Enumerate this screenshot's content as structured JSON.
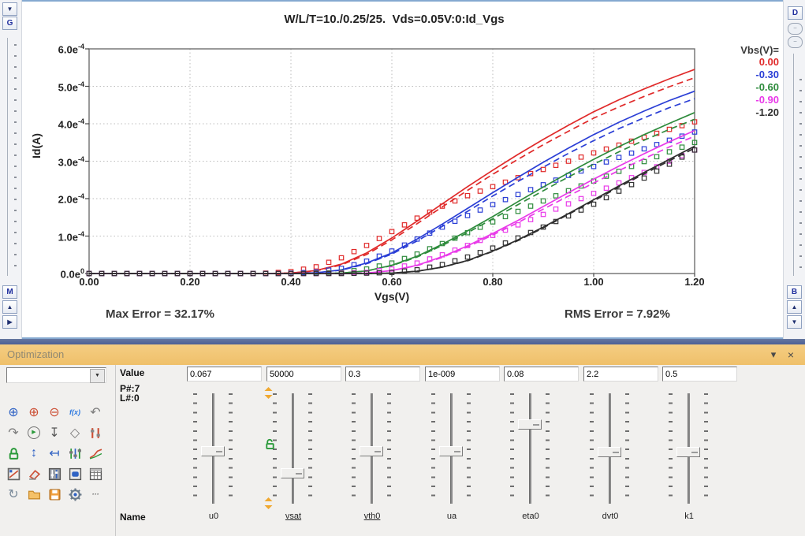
{
  "window": {
    "left_rail": {
      "collapse_glyph": "▼",
      "g_label": "G",
      "m_label": "M",
      "up_glyph": "▲",
      "right_glyph": "▶"
    },
    "right_rail": {
      "d_label": "D",
      "round1_glyph": "−",
      "round2_glyph": "−",
      "b_label": "B",
      "up_glyph": "▲",
      "down_glyph": "▼"
    }
  },
  "chart": {
    "title": "W/L/T=10./0.25/25.  Vds=0.05V:0:Id_Vgs",
    "xlabel": "Vgs(V)",
    "ylabel": "Id(A)",
    "max_error": "Max Error = 32.17%",
    "rms_error": "RMS Error = 7.92%",
    "x_tick_labels": [
      "0.00",
      "0.20",
      "0.40",
      "0.60",
      "0.80",
      "1.00",
      "1.20"
    ],
    "y_tick_labels": [
      [
        "6.0e",
        "-4"
      ],
      [
        "5.0e",
        "-4"
      ],
      [
        "4.0e",
        "-4"
      ],
      [
        "3.0e",
        "-4"
      ],
      [
        "2.0e",
        "-4"
      ],
      [
        "1.0e",
        "-4"
      ],
      [
        "0.0e",
        "0"
      ]
    ],
    "legend": {
      "title": "Vbs(V)=",
      "entries": [
        {
          "label": "0.00",
          "color": "#e02a2a"
        },
        {
          "label": "-0.30",
          "color": "#2b3fd6"
        },
        {
          "label": "-0.60",
          "color": "#2e8b3c"
        },
        {
          "label": "-0.90",
          "color": "#e93ae9"
        },
        {
          "label": "-1.20",
          "color": "#2f2f2f"
        }
      ]
    },
    "chart_data": {
      "type": "line",
      "title": "W/L/T=10./0.25/25.  Vds=0.05V:0:Id_Vgs",
      "xlabel": "Vgs(V)",
      "ylabel": "Id(A)",
      "xlim": [
        0,
        1.2
      ],
      "ylim": [
        0,
        0.0006
      ],
      "grid": "dotted",
      "legend_position": "top-right",
      "x_start": 0,
      "x_step": 0.05,
      "value_unit": "1e-4 A",
      "note": "solid/dashed = model curves, markers = measured squares",
      "series": [
        {
          "name": "Vbs=0.00",
          "color": "#e02a2a",
          "solid": [
            0,
            0,
            0,
            0,
            0,
            0,
            0,
            0,
            0.01,
            0.08,
            0.25,
            0.55,
            0.95,
            1.4,
            1.86,
            2.32,
            2.76,
            3.18,
            3.58,
            3.96,
            4.32,
            4.64,
            4.93,
            5.2,
            5.45
          ],
          "dashed": [
            0,
            0,
            0,
            0,
            0,
            0,
            0,
            0,
            0.01,
            0.07,
            0.23,
            0.51,
            0.9,
            1.33,
            1.78,
            2.22,
            2.65,
            3.05,
            3.44,
            3.8,
            4.15,
            4.45,
            4.73,
            4.99,
            5.23
          ],
          "markers": [
            0,
            0,
            0,
            0,
            0,
            0,
            0,
            0.01,
            0.05,
            0.18,
            0.42,
            0.75,
            1.12,
            1.48,
            1.8,
            2.08,
            2.32,
            2.56,
            2.78,
            3,
            3.22,
            3.43,
            3.64,
            3.85,
            4.05
          ]
        },
        {
          "name": "Vbs=-0.30",
          "color": "#2b3fd6",
          "solid": [
            0,
            0,
            0,
            0,
            0,
            0,
            0,
            0,
            0,
            0.02,
            0.1,
            0.28,
            0.55,
            0.92,
            1.32,
            1.74,
            2.16,
            2.57,
            2.97,
            3.35,
            3.71,
            4.04,
            4.34,
            4.62,
            4.87
          ],
          "dashed": [
            0,
            0,
            0,
            0,
            0,
            0,
            0,
            0,
            0,
            0.02,
            0.09,
            0.26,
            0.52,
            0.87,
            1.26,
            1.66,
            2.07,
            2.46,
            2.84,
            3.21,
            3.55,
            3.87,
            4.16,
            4.43,
            4.67
          ],
          "markers": [
            0,
            0,
            0,
            0,
            0,
            0,
            0,
            0,
            0.01,
            0.04,
            0.14,
            0.33,
            0.6,
            0.92,
            1.24,
            1.55,
            1.84,
            2.11,
            2.37,
            2.62,
            2.86,
            3.1,
            3.33,
            3.56,
            3.78
          ]
        },
        {
          "name": "Vbs=-0.60",
          "color": "#2e8b3c",
          "solid": [
            0,
            0,
            0,
            0,
            0,
            0,
            0,
            0,
            0,
            0,
            0.01,
            0.07,
            0.22,
            0.46,
            0.78,
            1.14,
            1.52,
            1.92,
            2.31,
            2.69,
            3.05,
            3.39,
            3.71,
            4.01,
            4.3
          ],
          "dashed": [
            0,
            0,
            0,
            0,
            0,
            0,
            0,
            0,
            0,
            0,
            0.01,
            0.07,
            0.21,
            0.44,
            0.75,
            1.09,
            1.46,
            1.84,
            2.21,
            2.58,
            2.92,
            3.25,
            3.56,
            3.85,
            4.12
          ],
          "markers": [
            0,
            0,
            0,
            0,
            0,
            0,
            0,
            0,
            0,
            0.01,
            0.03,
            0.12,
            0.28,
            0.52,
            0.8,
            1.09,
            1.38,
            1.66,
            1.94,
            2.21,
            2.47,
            2.73,
            2.99,
            3.25,
            3.5
          ]
        },
        {
          "name": "Vbs=-0.90",
          "color": "#e93ae9",
          "solid": [
            0,
            0,
            0,
            0,
            0,
            0,
            0,
            0,
            0,
            0,
            0,
            0.01,
            0.08,
            0.22,
            0.45,
            0.74,
            1.07,
            1.42,
            1.79,
            2.16,
            2.52,
            2.87,
            3.2,
            3.52,
            3.82
          ],
          "dashed": [
            0,
            0,
            0,
            0,
            0,
            0,
            0,
            0,
            0,
            0,
            0,
            0.01,
            0.08,
            0.21,
            0.43,
            0.71,
            1.03,
            1.36,
            1.72,
            2.07,
            2.42,
            2.75,
            3.07,
            3.38,
            3.67
          ],
          "markers": [
            0,
            0,
            0,
            0,
            0,
            0,
            0,
            0,
            0,
            0,
            0.01,
            0.03,
            0.12,
            0.28,
            0.5,
            0.75,
            1.02,
            1.3,
            1.58,
            1.86,
            2.14,
            2.42,
            2.7,
            3,
            3.3
          ]
        },
        {
          "name": "Vbs=-1.20",
          "color": "#2f2f2f",
          "solid": [
            0,
            0,
            0,
            0,
            0,
            0,
            0,
            0,
            0,
            0,
            0,
            0,
            0.01,
            0.06,
            0.17,
            0.35,
            0.6,
            0.9,
            1.24,
            1.6,
            1.97,
            2.34,
            2.7,
            3.05,
            3.4
          ],
          "dashed": [
            0,
            0,
            0,
            0,
            0,
            0,
            0,
            0,
            0,
            0,
            0,
            0,
            0.01,
            0.06,
            0.17,
            0.34,
            0.59,
            0.88,
            1.22,
            1.58,
            1.94,
            2.31,
            2.66,
            3.01,
            3.35
          ],
          "markers": [
            0,
            0,
            0,
            0,
            0,
            0,
            0,
            0,
            0,
            0,
            0,
            0.01,
            0.03,
            0.1,
            0.24,
            0.44,
            0.68,
            0.95,
            1.24,
            1.54,
            1.85,
            2.2,
            2.55,
            2.92,
            3.3
          ]
        }
      ]
    }
  },
  "optimization": {
    "title": "Optimization",
    "collapse_glyph": "▾",
    "close_glyph": "×",
    "combo_value": "",
    "combo_drop_glyph": "▼",
    "labels": {
      "value": "Value",
      "p_count": "P#:7",
      "l_count": "L#:0",
      "name": "Name"
    },
    "accent_colors": {
      "titlebar": "#efc06a",
      "range_marker": "#f0a830",
      "unlock": "#2a9a3a"
    },
    "toolbar": [
      {
        "name": "circle-plus-blue-icon",
        "glyph": "⊕",
        "color": "#2f62c4"
      },
      {
        "name": "circle-plus-red-icon",
        "glyph": "⊕",
        "color": "#cc4f35"
      },
      {
        "name": "circle-minus-red-icon",
        "glyph": "⊖",
        "color": "#cc4f35"
      },
      {
        "name": "function-icon",
        "glyph": "f(x)",
        "color": "#2f7ae0",
        "small": true
      },
      {
        "name": "undo-icon",
        "glyph": "↶",
        "color": "#7a7a7a"
      },
      {
        "name": "redo-icon",
        "glyph": "↷",
        "color": "#7a7a7a"
      },
      {
        "name": "run-icon",
        "glyph": "▶",
        "color": "#2a9a3a",
        "circle": true
      },
      {
        "name": "import-icon",
        "glyph": "↧",
        "color": "#555555"
      },
      {
        "name": "tag-icon",
        "glyph": "◇",
        "color": "#777777"
      },
      {
        "name": "tune-icon",
        "svg": "sliders-red"
      },
      {
        "name": "lock-icon",
        "svg": "lock-green"
      },
      {
        "name": "expand-vertical-icon",
        "glyph": "↕",
        "color": "#2f62c4"
      },
      {
        "name": "align-left-icon",
        "glyph": "↤",
        "color": "#2f62c4"
      },
      {
        "name": "sliders-icon",
        "svg": "sliders-multi"
      },
      {
        "name": "fit-curve-icon",
        "svg": "curve"
      },
      {
        "name": "plot-region-icon",
        "svg": "plot-frame"
      },
      {
        "name": "eraser-icon",
        "svg": "eraser"
      },
      {
        "name": "mixer-icon",
        "svg": "mixer"
      },
      {
        "name": "window-icon",
        "svg": "bluebox"
      },
      {
        "name": "table-icon",
        "svg": "grid"
      },
      {
        "name": "refresh-icon",
        "glyph": "↻",
        "color": "#7a8a9a"
      },
      {
        "name": "open-folder-icon",
        "svg": "folder"
      },
      {
        "name": "save-icon",
        "svg": "floppy"
      },
      {
        "name": "settings-gear-icon",
        "svg": "gear"
      },
      {
        "name": "more-icon",
        "glyph": "···",
        "color": "#555555",
        "small": true
      }
    ],
    "parameters": [
      {
        "name": "u0",
        "value": "0.067",
        "slider_pos": 0.52,
        "underlined": false
      },
      {
        "name": "vsat",
        "value": "50000",
        "slider_pos": 0.72,
        "underlined": true,
        "range_markers": true,
        "unlocked_icon": true
      },
      {
        "name": "vth0",
        "value": "0.3",
        "slider_pos": 0.52,
        "underlined": true
      },
      {
        "name": "ua",
        "value": "1e-009",
        "slider_pos": 0.52,
        "underlined": false
      },
      {
        "name": "eta0",
        "value": "0.08",
        "slider_pos": 0.28,
        "underlined": false
      },
      {
        "name": "dvt0",
        "value": "2.2",
        "slider_pos": 0.53,
        "underlined": false
      },
      {
        "name": "k1",
        "value": "0.5",
        "slider_pos": 0.53,
        "underlined": false
      }
    ]
  }
}
